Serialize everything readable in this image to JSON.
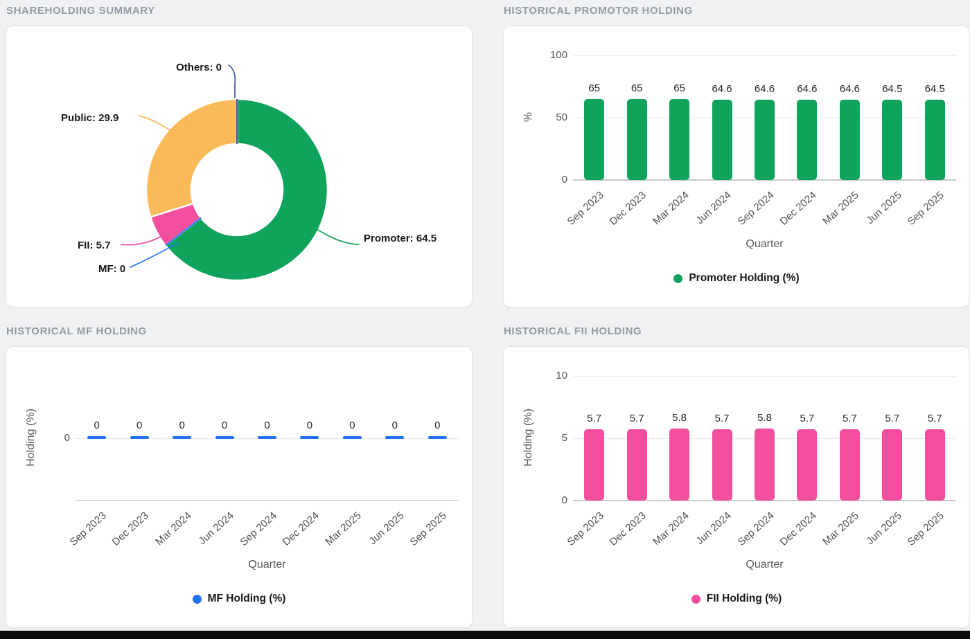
{
  "page": {
    "background": "#f0f1f3",
    "bottom_bar_color": "#0b0b0c"
  },
  "colors": {
    "promoter_green": "#10a35c",
    "public_orange": "#fbba59",
    "fii_pink": "#f2509e",
    "mf_blue": "#2173f0",
    "others_navy": "#44549e"
  },
  "chart_data": [
    {
      "type": "pie",
      "title": "SHAREHOLDING SUMMARY",
      "donut": true,
      "slices": [
        {
          "label": "Promoter",
          "value": 64.5,
          "color": "#10a35c"
        },
        {
          "label": "MF",
          "value": 0,
          "color": "#2173f0"
        },
        {
          "label": "FII",
          "value": 5.7,
          "color": "#f2509e"
        },
        {
          "label": "Public",
          "value": 29.9,
          "color": "#fbba59"
        },
        {
          "label": "Others",
          "value": 0,
          "color": "#44549e"
        }
      ]
    },
    {
      "type": "bar",
      "title": "HISTORICAL PROMOTOR HOLDING",
      "categories": [
        "Sep 2023",
        "Dec 2023",
        "Mar 2024",
        "Jun 2024",
        "Sep 2024",
        "Dec 2024",
        "Mar 2025",
        "Jun 2025",
        "Sep 2025"
      ],
      "values": [
        65,
        65,
        65,
        64.6,
        64.6,
        64.6,
        64.6,
        64.5,
        64.5
      ],
      "xlabel": "Quarter",
      "ylabel": "%",
      "ylim": [
        0,
        100
      ],
      "yticks": [
        100,
        50,
        0
      ],
      "legend": "Promoter Holding (%)",
      "color": "#10a35c",
      "grid": true,
      "legend_position": "bottom"
    },
    {
      "type": "bar",
      "title": "HISTORICAL MF HOLDING",
      "categories": [
        "Sep 2023",
        "Dec 2023",
        "Mar 2024",
        "Jun 2024",
        "Sep 2024",
        "Dec 2024",
        "Mar 2025",
        "Jun 2025",
        "Sep 2025"
      ],
      "values": [
        0,
        0,
        0,
        0,
        0,
        0,
        0,
        0,
        0
      ],
      "xlabel": "Quarter",
      "ylabel": "Holding (%)",
      "ylim": [
        -5,
        5
      ],
      "yticks": [
        0
      ],
      "legend": "MF Holding (%)",
      "color": "#2173f0",
      "grid": true,
      "legend_position": "bottom"
    },
    {
      "type": "bar",
      "title": "HISTORICAL FII HOLDING",
      "categories": [
        "Sep 2023",
        "Dec 2023",
        "Mar 2024",
        "Jun 2024",
        "Sep 2024",
        "Dec 2024",
        "Mar 2025",
        "Jun 2025",
        "Sep 2025"
      ],
      "values": [
        5.7,
        5.7,
        5.8,
        5.7,
        5.8,
        5.7,
        5.7,
        5.7,
        5.7
      ],
      "xlabel": "Quarter",
      "ylabel": "Holding (%)",
      "ylim": [
        0,
        10
      ],
      "yticks": [
        10,
        5,
        0
      ],
      "legend": "FII Holding (%)",
      "color": "#f2509e",
      "grid": true,
      "legend_position": "bottom"
    }
  ]
}
